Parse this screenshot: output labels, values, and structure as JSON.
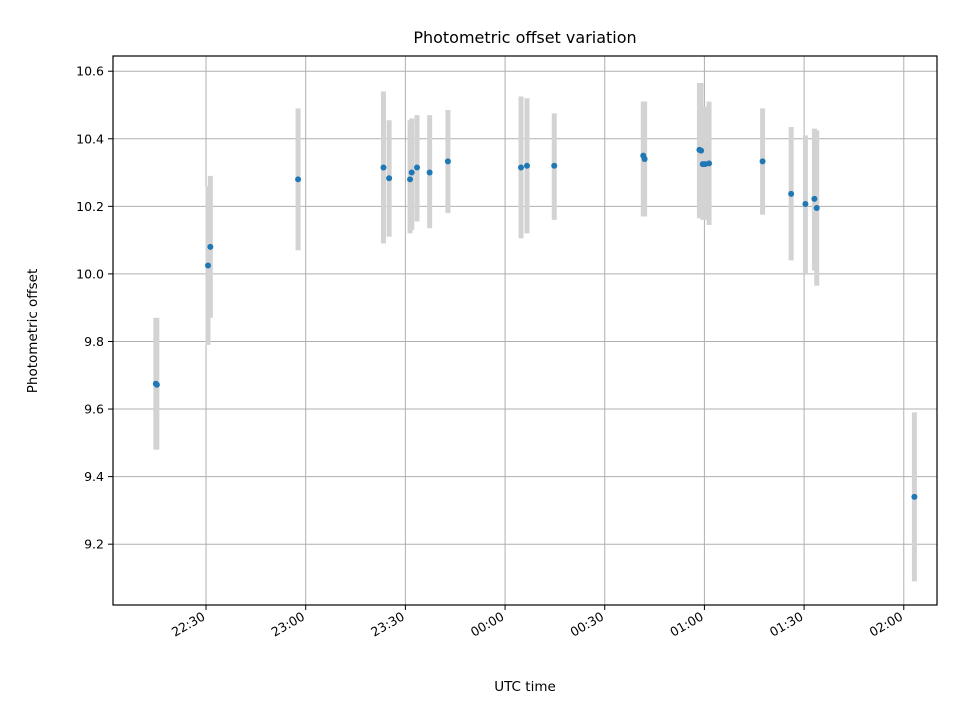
{
  "chart_data": {
    "type": "scatter",
    "title": "Photometric offset variation",
    "xlabel": "UTC time",
    "ylabel": "Photometric offset",
    "x_start": "22:08",
    "xlim_minutes": [
      -6,
      242
    ],
    "ylim": [
      9.02,
      10.645
    ],
    "xticks": [
      {
        "label": "22:30",
        "t": 22
      },
      {
        "label": "23:00",
        "t": 52
      },
      {
        "label": "23:30",
        "t": 82
      },
      {
        "label": "00:00",
        "t": 112
      },
      {
        "label": "00:30",
        "t": 142
      },
      {
        "label": "01:00",
        "t": 172
      },
      {
        "label": "01:30",
        "t": 202
      },
      {
        "label": "02:00",
        "t": 232
      }
    ],
    "yticks": [
      9.2,
      9.4,
      9.6,
      9.8,
      10.0,
      10.2,
      10.4,
      10.6
    ],
    "ytick_labels": [
      "9.2",
      "9.4",
      "9.6",
      "9.8",
      "10.0",
      "10.2",
      "10.4",
      "10.6"
    ],
    "grid": true,
    "marker_color": "#1f77b4",
    "errorbar_color": "#d3d3d3",
    "series": [
      {
        "points": [
          {
            "t": 6.9,
            "y": 9.675,
            "lo": 9.48,
            "hi": 9.87
          },
          {
            "t": 7.2,
            "y": 9.672,
            "lo": 9.48,
            "hi": 9.87
          },
          {
            "t": 22.6,
            "y": 10.025,
            "lo": 9.79,
            "hi": 10.26
          },
          {
            "t": 23.3,
            "y": 10.08,
            "lo": 9.87,
            "hi": 10.29
          },
          {
            "t": 49.7,
            "y": 10.28,
            "lo": 10.07,
            "hi": 10.49
          },
          {
            "t": 75.4,
            "y": 10.315,
            "lo": 10.09,
            "hi": 10.54
          },
          {
            "t": 77.1,
            "y": 10.283,
            "lo": 10.11,
            "hi": 10.455
          },
          {
            "t": 83.4,
            "y": 10.28,
            "lo": 10.12,
            "hi": 10.455
          },
          {
            "t": 83.9,
            "y": 10.3,
            "lo": 10.13,
            "hi": 10.46
          },
          {
            "t": 85.5,
            "y": 10.315,
            "lo": 10.155,
            "hi": 10.47
          },
          {
            "t": 89.3,
            "y": 10.3,
            "lo": 10.135,
            "hi": 10.47
          },
          {
            "t": 94.8,
            "y": 10.333,
            "lo": 10.18,
            "hi": 10.485
          },
          {
            "t": 116.8,
            "y": 10.315,
            "lo": 10.105,
            "hi": 10.525
          },
          {
            "t": 118.6,
            "y": 10.32,
            "lo": 10.12,
            "hi": 10.52
          },
          {
            "t": 126.8,
            "y": 10.32,
            "lo": 10.16,
            "hi": 10.475
          },
          {
            "t": 153.6,
            "y": 10.35,
            "lo": 10.17,
            "hi": 10.51
          },
          {
            "t": 154.0,
            "y": 10.34,
            "lo": 10.17,
            "hi": 10.51
          },
          {
            "t": 170.5,
            "y": 10.367,
            "lo": 10.165,
            "hi": 10.565
          },
          {
            "t": 171.0,
            "y": 10.365,
            "lo": 10.165,
            "hi": 10.565
          },
          {
            "t": 171.5,
            "y": 10.325,
            "lo": 10.16,
            "hi": 10.495
          },
          {
            "t": 172.2,
            "y": 10.325,
            "lo": 10.16,
            "hi": 10.495
          },
          {
            "t": 173.4,
            "y": 10.327,
            "lo": 10.145,
            "hi": 10.51
          },
          {
            "t": 189.5,
            "y": 10.333,
            "lo": 10.175,
            "hi": 10.49
          },
          {
            "t": 198.1,
            "y": 10.237,
            "lo": 10.04,
            "hi": 10.435
          },
          {
            "t": 202.4,
            "y": 10.207,
            "lo": 10.0,
            "hi": 10.41
          },
          {
            "t": 205.1,
            "y": 10.222,
            "lo": 10.01,
            "hi": 10.43
          },
          {
            "t": 205.8,
            "y": 10.195,
            "lo": 9.965,
            "hi": 10.425
          },
          {
            "t": 235.2,
            "y": 9.34,
            "lo": 9.09,
            "hi": 9.59
          }
        ]
      }
    ]
  }
}
